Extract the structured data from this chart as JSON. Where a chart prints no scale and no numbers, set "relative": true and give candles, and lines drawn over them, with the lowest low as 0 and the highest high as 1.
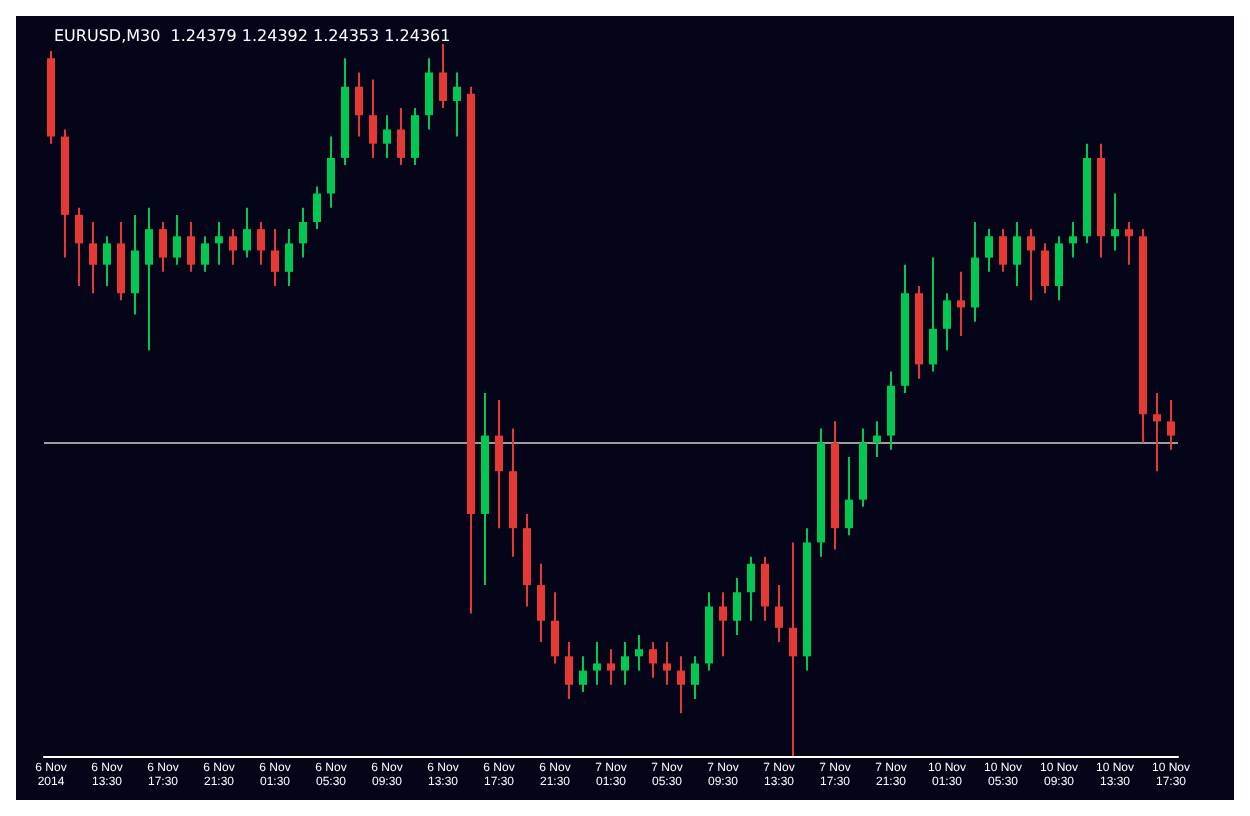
{
  "chart_data": {
    "type": "candlestick",
    "title": "EURUSD,M30  1.24379 1.24392 1.24353 1.24361",
    "relative": true,
    "grid": false,
    "colors": [
      "#e53935",
      "#e53935",
      "#e53935",
      "#e53935",
      "#00c853",
      "#e53935",
      "#00c853",
      "#00c853",
      "#e53935",
      "#00c853",
      "#e53935",
      "#00c853",
      "#00c853",
      "#e53935",
      "#00c853",
      "#e53935",
      "#e53935",
      "#00c853",
      "#00c853",
      "#00c853",
      "#00c853",
      "#00c853",
      "#e53935",
      "#e53935",
      "#00c853",
      "#e53935",
      "#00c853",
      "#00c853",
      "#e53935",
      "#00c853",
      "#e53935",
      "#00c853",
      "#e53935",
      "#e53935",
      "#e53935",
      "#e53935",
      "#e53935",
      "#e53935",
      "#00c853",
      "#00c853",
      "#e53935",
      "#00c853",
      "#00c853",
      "#e53935",
      "#e53935",
      "#e53935",
      "#00c853",
      "#00c853",
      "#e53935",
      "#00c853",
      "#00c853",
      "#e53935",
      "#e53935",
      "#e53935",
      "#00c853",
      "#00c853",
      "#e53935",
      "#00c853",
      "#00c853",
      "#00c853",
      "#00c853",
      "#00c853",
      "#e53935",
      "#00c853",
      "#00c853",
      "#e53935",
      "#00c853",
      "#00c853",
      "#e53935",
      "#00c853",
      "#e53935",
      "#e53935",
      "#00c853",
      "#00c853",
      "#00c853",
      "#e53935",
      "#00c853",
      "#e53935",
      "#e53935",
      "#e53935",
      "#e53935"
    ],
    "categories": [
      "6 Nov 2014",
      null,
      null,
      null,
      "6 Nov 13:30",
      null,
      null,
      null,
      "6 Nov 17:30",
      null,
      null,
      null,
      "6 Nov 21:30",
      null,
      null,
      null,
      "6 Nov 01:30",
      null,
      null,
      null,
      "6 Nov 05:30",
      null,
      null,
      null,
      "6 Nov 09:30",
      null,
      null,
      null,
      "6 Nov 13:30",
      null,
      null,
      null,
      "6 Nov 17:30",
      null,
      null,
      null,
      "6 Nov 21:30",
      null,
      null,
      null,
      "7 Nov 01:30",
      null,
      null,
      null,
      "7 Nov 05:30",
      null,
      null,
      null,
      "7 Nov 09:30",
      null,
      null,
      null,
      "7 Nov 13:30",
      null,
      null,
      null,
      "7 Nov 17:30",
      null,
      null,
      null,
      "7 Nov 21:30",
      null,
      null,
      null,
      "10 Nov 01:30",
      null,
      null,
      null,
      "10 Nov 05:30",
      null,
      null,
      null,
      "10 Nov 09:30",
      null,
      null,
      null,
      "10 Nov 13:30",
      null,
      null,
      null,
      "10 Nov 17:30"
    ],
    "ohlc": [
      [
        0.98,
        0.99,
        0.86,
        0.87
      ],
      [
        0.87,
        0.88,
        0.7,
        0.76
      ],
      [
        0.76,
        0.77,
        0.66,
        0.72
      ],
      [
        0.72,
        0.75,
        0.65,
        0.69
      ],
      [
        0.69,
        0.73,
        0.66,
        0.72
      ],
      [
        0.72,
        0.75,
        0.64,
        0.65
      ],
      [
        0.65,
        0.76,
        0.62,
        0.71
      ],
      [
        0.69,
        0.77,
        0.57,
        0.74
      ],
      [
        0.74,
        0.75,
        0.68,
        0.7
      ],
      [
        0.7,
        0.76,
        0.69,
        0.73
      ],
      [
        0.73,
        0.75,
        0.68,
        0.69
      ],
      [
        0.69,
        0.73,
        0.68,
        0.72
      ],
      [
        0.72,
        0.75,
        0.69,
        0.73
      ],
      [
        0.73,
        0.74,
        0.69,
        0.71
      ],
      [
        0.71,
        0.77,
        0.7,
        0.74
      ],
      [
        0.74,
        0.75,
        0.69,
        0.71
      ],
      [
        0.71,
        0.74,
        0.66,
        0.68
      ],
      [
        0.68,
        0.74,
        0.66,
        0.72
      ],
      [
        0.72,
        0.77,
        0.7,
        0.75
      ],
      [
        0.75,
        0.8,
        0.74,
        0.79
      ],
      [
        0.79,
        0.87,
        0.77,
        0.84
      ],
      [
        0.84,
        0.98,
        0.83,
        0.94
      ],
      [
        0.94,
        0.96,
        0.87,
        0.9
      ],
      [
        0.9,
        0.95,
        0.84,
        0.86
      ],
      [
        0.86,
        0.9,
        0.84,
        0.88
      ],
      [
        0.88,
        0.91,
        0.83,
        0.84
      ],
      [
        0.84,
        0.91,
        0.83,
        0.9
      ],
      [
        0.9,
        0.98,
        0.88,
        0.96
      ],
      [
        0.96,
        1.0,
        0.91,
        0.92
      ],
      [
        0.92,
        0.96,
        0.87,
        0.94
      ],
      [
        0.93,
        0.94,
        0.2,
        0.34
      ],
      [
        0.34,
        0.51,
        0.24,
        0.45
      ],
      [
        0.45,
        0.5,
        0.32,
        0.4
      ],
      [
        0.4,
        0.46,
        0.28,
        0.32
      ],
      [
        0.32,
        0.34,
        0.21,
        0.24
      ],
      [
        0.24,
        0.27,
        0.16,
        0.19
      ],
      [
        0.19,
        0.23,
        0.13,
        0.14
      ],
      [
        0.14,
        0.16,
        0.08,
        0.1
      ],
      [
        0.1,
        0.14,
        0.09,
        0.12
      ],
      [
        0.12,
        0.16,
        0.1,
        0.13
      ],
      [
        0.13,
        0.15,
        0.1,
        0.12
      ],
      [
        0.12,
        0.16,
        0.1,
        0.14
      ],
      [
        0.14,
        0.17,
        0.12,
        0.15
      ],
      [
        0.15,
        0.16,
        0.11,
        0.13
      ],
      [
        0.13,
        0.16,
        0.1,
        0.12
      ],
      [
        0.12,
        0.14,
        0.06,
        0.1
      ],
      [
        0.1,
        0.14,
        0.08,
        0.13
      ],
      [
        0.13,
        0.23,
        0.12,
        0.21
      ],
      [
        0.21,
        0.23,
        0.14,
        0.19
      ],
      [
        0.19,
        0.25,
        0.17,
        0.23
      ],
      [
        0.23,
        0.28,
        0.19,
        0.27
      ],
      [
        0.27,
        0.28,
        0.19,
        0.21
      ],
      [
        0.21,
        0.24,
        0.16,
        0.18
      ],
      [
        0.18,
        0.3,
        0.0,
        0.14
      ],
      [
        0.14,
        0.32,
        0.12,
        0.3
      ],
      [
        0.3,
        0.46,
        0.28,
        0.44
      ],
      [
        0.44,
        0.47,
        0.29,
        0.32
      ],
      [
        0.32,
        0.42,
        0.31,
        0.36
      ],
      [
        0.36,
        0.46,
        0.35,
        0.44
      ],
      [
        0.44,
        0.47,
        0.42,
        0.45
      ],
      [
        0.45,
        0.54,
        0.43,
        0.52
      ],
      [
        0.52,
        0.69,
        0.51,
        0.65
      ],
      [
        0.65,
        0.66,
        0.53,
        0.55
      ],
      [
        0.55,
        0.7,
        0.54,
        0.6
      ],
      [
        0.6,
        0.65,
        0.57,
        0.64
      ],
      [
        0.64,
        0.68,
        0.59,
        0.63
      ],
      [
        0.63,
        0.75,
        0.61,
        0.7
      ],
      [
        0.7,
        0.74,
        0.68,
        0.73
      ],
      [
        0.73,
        0.74,
        0.68,
        0.69
      ],
      [
        0.69,
        0.75,
        0.66,
        0.73
      ],
      [
        0.73,
        0.74,
        0.64,
        0.71
      ],
      [
        0.71,
        0.72,
        0.65,
        0.66
      ],
      [
        0.66,
        0.73,
        0.64,
        0.72
      ],
      [
        0.72,
        0.75,
        0.7,
        0.73
      ],
      [
        0.73,
        0.86,
        0.72,
        0.84
      ],
      [
        0.84,
        0.86,
        0.7,
        0.73
      ],
      [
        0.73,
        0.79,
        0.71,
        0.74
      ],
      [
        0.74,
        0.75,
        0.69,
        0.73
      ],
      [
        0.73,
        0.74,
        0.44,
        0.48
      ],
      [
        0.48,
        0.51,
        0.4,
        0.47
      ],
      [
        0.47,
        0.5,
        0.43,
        0.45
      ]
    ],
    "ref_lines": [
      {
        "axis": "y",
        "value": 0.44,
        "color": "#9e9e9e",
        "line_style": "solid"
      }
    ]
  }
}
